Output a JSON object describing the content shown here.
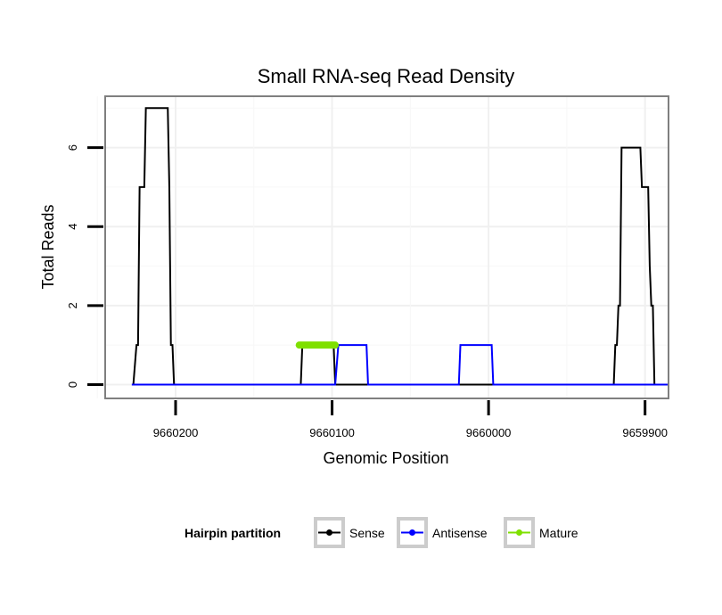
{
  "chart_data": {
    "type": "line",
    "title": "Small RNA-seq Read Density",
    "xlabel": "Genomic Position",
    "ylabel": "Total Reads",
    "x_reversed": true,
    "xlim": [
      9660245,
      9659885
    ],
    "ylim": [
      -0.35,
      7.3
    ],
    "x_ticks": [
      9660200,
      9660100,
      9660000,
      9659900
    ],
    "x_tick_labels": [
      "9660200",
      "9660100",
      "9660000",
      "9659900"
    ],
    "y_ticks": [
      0,
      2,
      4,
      6
    ],
    "y_tick_labels": [
      "0",
      "2",
      "4",
      "6"
    ],
    "grid": true,
    "legend": {
      "title": "Hairpin partition",
      "position": "bottom",
      "entries": [
        "Sense",
        "Antisense",
        "Mature"
      ]
    },
    "series": [
      {
        "name": "Sense",
        "color": "#000000",
        "points": [
          [
            9660227,
            0
          ],
          [
            9660225,
            1
          ],
          [
            9660224,
            1
          ],
          [
            9660223,
            5
          ],
          [
            9660222,
            5
          ],
          [
            9660220,
            5
          ],
          [
            9660219,
            7
          ],
          [
            9660206,
            7
          ],
          [
            9660205,
            7
          ],
          [
            9660204,
            5
          ],
          [
            9660203,
            1
          ],
          [
            9660202,
            1
          ],
          [
            9660201,
            0
          ],
          [
            9660120,
            0
          ],
          [
            9660119,
            1
          ],
          [
            9660099,
            1
          ],
          [
            9660098,
            0
          ],
          [
            9659920,
            0
          ],
          [
            9659919,
            1
          ],
          [
            9659918,
            1
          ],
          [
            9659917,
            2
          ],
          [
            9659916,
            2
          ],
          [
            9659915,
            6
          ],
          [
            9659903,
            6
          ],
          [
            9659902,
            5
          ],
          [
            9659898,
            5
          ],
          [
            9659897,
            3
          ],
          [
            9659896,
            2
          ],
          [
            9659895,
            2
          ],
          [
            9659894,
            0
          ],
          [
            9659885,
            0
          ]
        ]
      },
      {
        "name": "Antisense",
        "color": "#0000ff",
        "points": [
          [
            9660228,
            0
          ],
          [
            9660098,
            0
          ],
          [
            9660096,
            1
          ],
          [
            9660078,
            1
          ],
          [
            9660077,
            0
          ],
          [
            9660019,
            0
          ],
          [
            9660018,
            1
          ],
          [
            9659998,
            1
          ],
          [
            9659997,
            0
          ],
          [
            9659885,
            0
          ]
        ]
      },
      {
        "name": "Mature",
        "color": "#7fe000",
        "points": [
          [
            9660121,
            1
          ],
          [
            9660098,
            1
          ]
        ]
      }
    ]
  }
}
